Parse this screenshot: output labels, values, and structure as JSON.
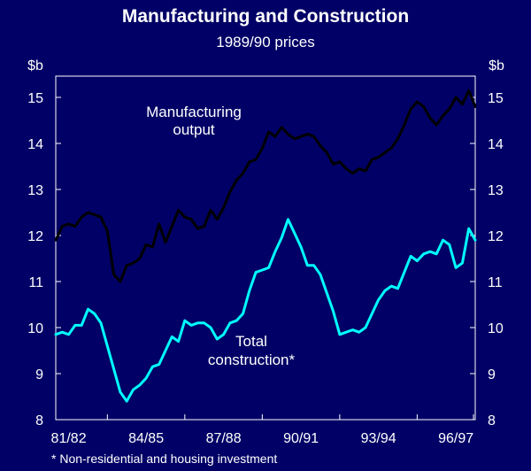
{
  "chart_data": {
    "type": "line",
    "title": "Manufacturing and Construction",
    "subtitle": "1989/90 prices",
    "unit_left": "$b",
    "unit_right": "$b",
    "ylim": [
      8,
      15.5
    ],
    "yticks": [
      "8",
      "9",
      "10",
      "11",
      "12",
      "13",
      "14",
      "15"
    ],
    "xlim": [
      0,
      65
    ],
    "xticks": [
      {
        "label": "81/82",
        "x": 8
      },
      {
        "label": "84/85",
        "x": 20
      },
      {
        "label": "87/88",
        "x": 32
      },
      {
        "label": "90/91",
        "x": 44
      },
      {
        "label": "93/94",
        "x": 56
      },
      {
        "label": "96/97",
        "x": 68
      }
    ],
    "series": [
      {
        "name": "Manufacturing output",
        "color": "#000000",
        "values": [
          11.9,
          12.2,
          12.25,
          12.2,
          12.4,
          12.5,
          12.45,
          12.4,
          12.1,
          11.15,
          11.0,
          11.35,
          11.4,
          11.5,
          11.8,
          11.75,
          12.25,
          11.85,
          12.2,
          12.55,
          12.4,
          12.35,
          12.15,
          12.2,
          12.55,
          12.35,
          12.6,
          12.95,
          13.2,
          13.35,
          13.6,
          13.65,
          13.9,
          14.25,
          14.15,
          14.35,
          14.2,
          14.1,
          14.15,
          14.2,
          14.15,
          13.95,
          13.8,
          13.55,
          13.6,
          13.45,
          13.35,
          13.45,
          13.4,
          13.65,
          13.7,
          13.8,
          13.9,
          14.1,
          14.4,
          14.75,
          14.9,
          14.8,
          14.55,
          14.4,
          14.6,
          14.75,
          15.0,
          14.85,
          15.15,
          14.8
        ]
      },
      {
        "name": "Total construction*",
        "color": "#00ffff",
        "values": [
          9.85,
          9.9,
          9.85,
          10.05,
          10.05,
          10.4,
          10.3,
          10.1,
          9.6,
          9.1,
          8.6,
          8.4,
          8.65,
          8.75,
          8.9,
          9.15,
          9.2,
          9.5,
          9.8,
          9.7,
          10.15,
          10.05,
          10.1,
          10.1,
          10.0,
          9.75,
          9.85,
          10.1,
          10.15,
          10.3,
          10.8,
          11.2,
          11.25,
          11.3,
          11.65,
          11.95,
          12.35,
          12.05,
          11.75,
          11.35,
          11.35,
          11.15,
          10.75,
          10.35,
          9.85,
          9.9,
          9.95,
          9.9,
          10.0,
          10.3,
          10.6,
          10.8,
          10.9,
          10.85,
          11.2,
          11.55,
          11.45,
          11.6,
          11.65,
          11.6,
          11.9,
          11.8,
          11.3,
          11.4,
          12.15,
          11.9
        ]
      }
    ],
    "annotations": {
      "manufacturing": [
        "Manufacturing",
        "output"
      ],
      "construction": [
        "Total",
        "construction*"
      ]
    },
    "footnote": "* Non-residential and housing investment",
    "grid": false,
    "background": "#000066"
  }
}
